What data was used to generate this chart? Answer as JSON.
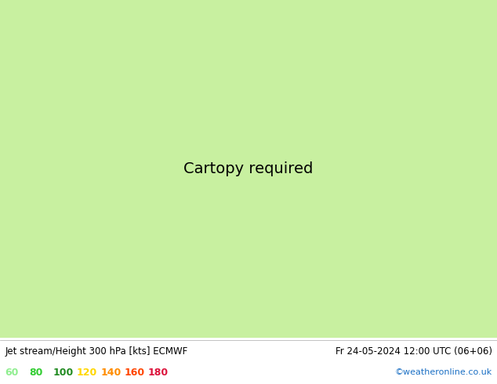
{
  "title_left": "Jet stream/Height 300 hPa [kts] ECMWF",
  "title_right": "Fr 24-05-2024 12:00 UTC (06+06)",
  "credit": "©weatheronline.co.uk",
  "legend_values": [
    "60",
    "80",
    "100",
    "120",
    "140",
    "160",
    "180"
  ],
  "legend_colors": [
    "#90ee90",
    "#32cd32",
    "#228b22",
    "#ffd700",
    "#ff8c00",
    "#ff4500",
    "#dc143c"
  ],
  "land_color": "#c8f0a0",
  "sea_color": "#d8d8d8",
  "border_color": "#aaaaaa",
  "contour_color": "#000000",
  "figsize": [
    6.34,
    4.9
  ],
  "dpi": 100,
  "extent": [
    20,
    110,
    5,
    60
  ],
  "jet_patch_color_light": "#b0e8b0",
  "jet_patch_color_med": "#78d878",
  "jet_patch_color_dark": "#40b840"
}
